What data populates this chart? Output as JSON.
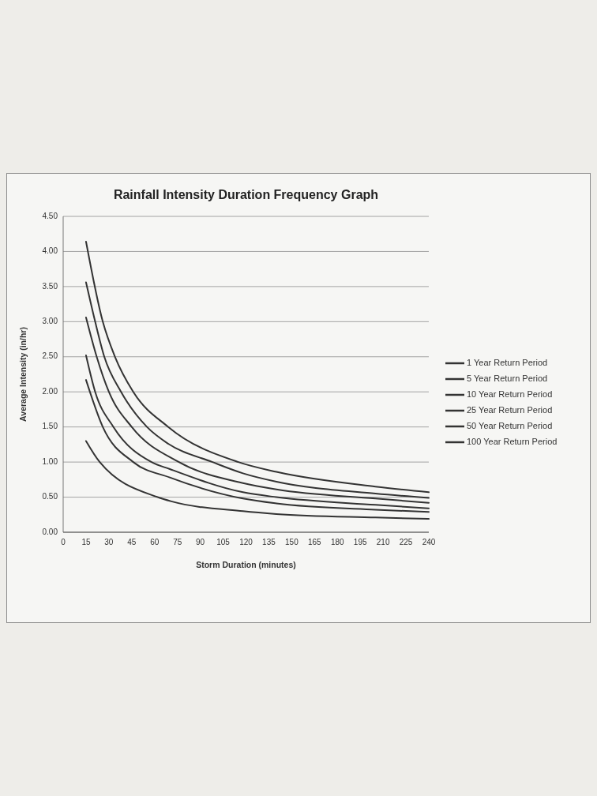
{
  "chart_data": {
    "type": "line",
    "title": "Rainfall Intensity Duration Frequency Graph",
    "xlabel": "Storm Duration (minutes)",
    "ylabel": "Average Intensity (in/hr)",
    "xlim": [
      0,
      240
    ],
    "xticks": [
      0,
      15,
      30,
      45,
      60,
      75,
      90,
      105,
      120,
      135,
      150,
      165,
      180,
      195,
      210,
      225,
      240
    ],
    "ylim": [
      0,
      4.5
    ],
    "yticks": [
      {
        "value": 0,
        "label": "0.00"
      },
      {
        "value": 0.5,
        "label": "0.50"
      },
      {
        "value": 1,
        "label": "1.00"
      },
      {
        "value": 1.5,
        "label": "1.50"
      },
      {
        "value": 2,
        "label": "2.00"
      },
      {
        "value": 2.5,
        "label": "2.50"
      },
      {
        "value": 3,
        "label": "3.00"
      },
      {
        "value": 3.5,
        "label": "3.50"
      },
      {
        "value": 4,
        "label": "4.00"
      },
      {
        "value": 4.5,
        "label": "4.50"
      }
    ],
    "grid": "y",
    "legend": "right",
    "series": [
      {
        "name": "1 Year Return Period",
        "color": "#333333",
        "x": [
          15,
          24,
          62,
          71,
          118,
          140,
          205,
          240
        ],
        "values": [
          1.3,
          1.0,
          0.5,
          0.44,
          0.3,
          0.26,
          0.21,
          0.19
        ]
      },
      {
        "name": "5 Year Return Period",
        "color": "#333333",
        "x": [
          15,
          26,
          46,
          70,
          118,
          140,
          205,
          240
        ],
        "values": [
          2.17,
          1.5,
          1.0,
          0.78,
          0.48,
          0.41,
          0.32,
          0.29
        ]
      },
      {
        "name": "10 Year Return Period",
        "color": "#333333",
        "x": [
          15,
          21,
          33,
          58,
          70,
          118,
          140,
          205,
          240
        ],
        "values": [
          2.52,
          2.0,
          1.5,
          1.0,
          0.9,
          0.57,
          0.5,
          0.39,
          0.34
        ]
      },
      {
        "name": "25 Year Return Period",
        "color": "#333333",
        "x": [
          15,
          22,
          30,
          45,
          76,
          118,
          140,
          205,
          240
        ],
        "values": [
          3.06,
          2.5,
          2.0,
          1.5,
          1.0,
          0.7,
          0.61,
          0.48,
          0.42
        ]
      },
      {
        "name": "50 Year Return Period",
        "color": "#333333",
        "x": [
          15,
          21,
          27,
          38,
          55,
          69,
          98,
          118,
          140,
          205,
          240
        ],
        "values": [
          3.56,
          3.0,
          2.5,
          2.0,
          1.5,
          1.26,
          1.0,
          0.84,
          0.72,
          0.55,
          0.49
        ]
      },
      {
        "name": "100 Year Return Period",
        "color": "#333333",
        "x": [
          15,
          26,
          34,
          46,
          69,
          115,
          140,
          205,
          240
        ],
        "values": [
          4.14,
          3.0,
          2.5,
          2.0,
          1.5,
          1.0,
          0.86,
          0.65,
          0.57
        ]
      }
    ]
  }
}
